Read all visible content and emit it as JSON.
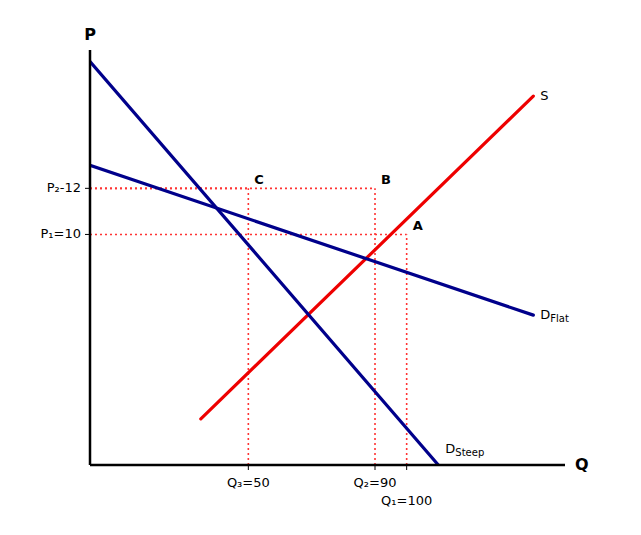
{
  "chart_data": {
    "type": "line",
    "xlabel": "Q",
    "ylabel": "P",
    "xlim": [
      0,
      150
    ],
    "ylim": [
      0,
      18
    ],
    "xticks": [
      {
        "value": 50,
        "label": "Q₃=50"
      },
      {
        "value": 90,
        "label": "Q₂=90"
      },
      {
        "value": 100,
        "label": "Q₁=100"
      }
    ],
    "yticks": [
      {
        "value": 10,
        "label": "P₁=10"
      },
      {
        "value": 12,
        "label": "P₂-12"
      }
    ],
    "grid": false,
    "series": [
      {
        "name": "S",
        "color": "#EE0000",
        "x": [
          35,
          140
        ],
        "values": [
          2,
          16
        ]
      },
      {
        "name": "D",
        "name_sub": "Flat",
        "color": "#00008B",
        "x": [
          0,
          140
        ],
        "values": [
          13.0,
          6.5
        ]
      },
      {
        "name": "D",
        "name_sub": "Steep",
        "color": "#00008B",
        "x": [
          0,
          110
        ],
        "values": [
          17.5,
          0
        ]
      }
    ],
    "points": [
      {
        "label": "A",
        "x": 100,
        "y": 10,
        "color": "#FF3333"
      },
      {
        "label": "B",
        "x": 90,
        "y": 12,
        "color": "#FF3333"
      },
      {
        "label": "C",
        "x": 50,
        "y": 12,
        "color": "#FF3333"
      }
    ]
  }
}
